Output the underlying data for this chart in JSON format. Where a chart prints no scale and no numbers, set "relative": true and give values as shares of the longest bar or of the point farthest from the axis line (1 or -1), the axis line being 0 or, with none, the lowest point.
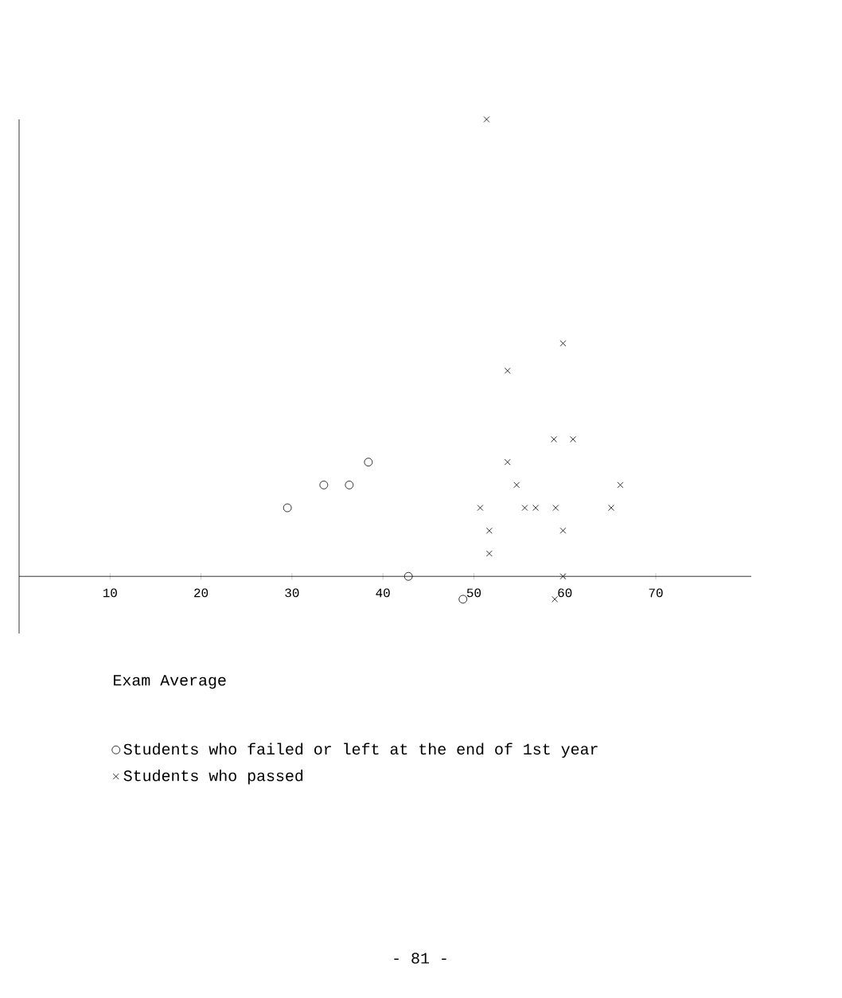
{
  "chart_data": {
    "type": "scatter",
    "xlabel": "Exam Average",
    "relative": true,
    "xlim": [
      0,
      80.5
    ],
    "xticks": [
      10,
      20,
      30,
      40,
      50,
      60,
      70
    ],
    "legend": "bottom",
    "grid": false,
    "series": [
      {
        "name": "Students who failed or left at the end of 1st year",
        "color": "#000000",
        "marker": "circle",
        "x": [
          29.5,
          33.5,
          36.3,
          38.4,
          42.8,
          48.8
        ],
        "values": [
          0.15,
          0.2,
          0.2,
          0.25,
          0,
          -0.05
        ]
      },
      {
        "name": "Students who passed",
        "color": "#000000",
        "marker": "cross",
        "x": [
          58.8,
          60.9,
          53.7,
          54.7,
          66.1,
          50.7,
          55.6,
          56.8,
          59.0,
          65.1,
          51.7,
          59.8,
          51.7,
          59.8,
          58.9,
          59.8,
          53.7,
          51.4
        ],
        "values": [
          0.3,
          0.3,
          0.25,
          0.2,
          0.2,
          0.15,
          0.15,
          0.15,
          0.15,
          0.15,
          0.1,
          0.1,
          0.05,
          0,
          -0.05,
          0.51,
          0.45,
          1
        ]
      }
    ],
    "annotations": [
      "- 81 -"
    ]
  }
}
